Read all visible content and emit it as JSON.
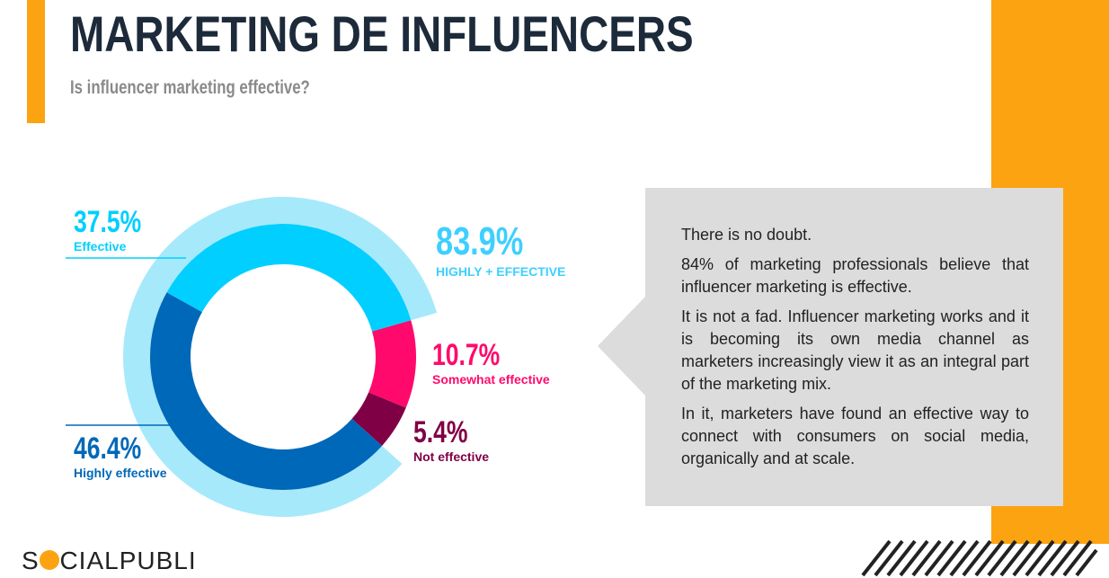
{
  "chart_data": {
    "type": "donut",
    "title": "MARKETING DE INFLUENCERS",
    "subtitle": "Is influencer marketing effective?",
    "categories": [
      "Somewhat effective",
      "Not effective",
      "Highly effective",
      "Effective"
    ],
    "values": [
      10.7,
      5.4,
      46.4,
      37.5
    ],
    "value_labels": [
      "10.7%",
      "5.4%",
      "46.4%",
      "37.5%"
    ],
    "colors": [
      "#ff0a6c",
      "#800045",
      "#0068b8",
      "#00cfff"
    ],
    "total": {
      "name": "HIGHLY + EFFECTIVE",
      "value": 83.9,
      "value_label": "83.9%",
      "color": "#a6e9fb"
    }
  },
  "note": {
    "paragraphs": [
      "There is no doubt.",
      "84% of marketing professionals believe that influencer marketing is effective.",
      "It is not a fad. Influencer marketing works and it is becoming its own media channel as marketers increasingly view it as an integral part of the marketing mix.",
      "In it, marketers have found an effective way to connect with consumers on social media, organically and at scale."
    ]
  },
  "logo": "SOCIALPUBLI"
}
